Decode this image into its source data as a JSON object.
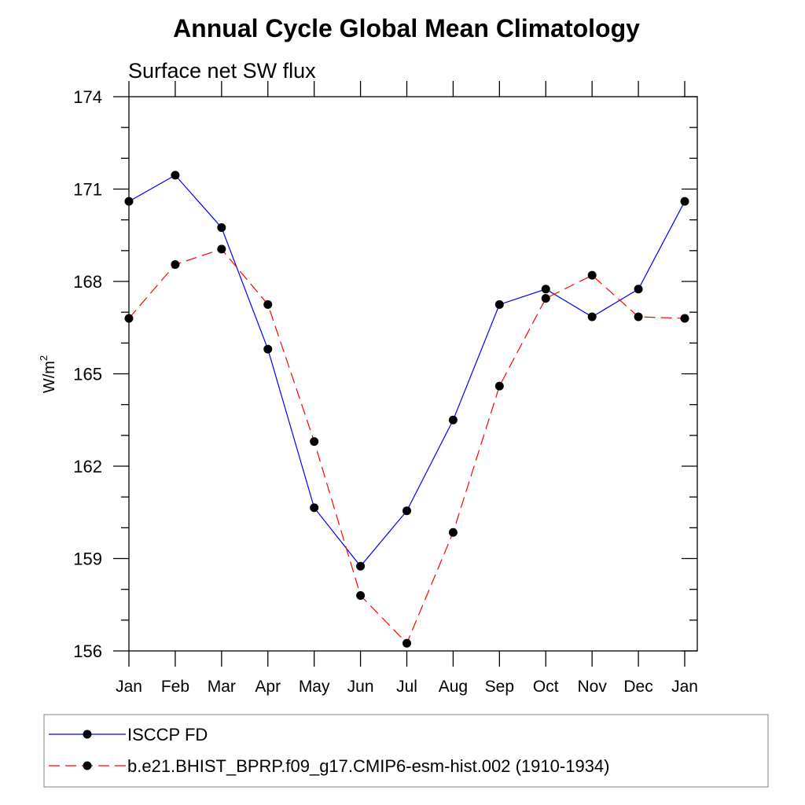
{
  "chart_data": {
    "type": "line",
    "title": "Annual Cycle Global Mean Climatology",
    "subtitle": "Surface net SW flux",
    "xlabel": "",
    "ylabel_base": "W/m",
    "ylabel_sup": "2",
    "categories": [
      "Jan",
      "Feb",
      "Mar",
      "Apr",
      "May",
      "Jun",
      "Jul",
      "Aug",
      "Sep",
      "Oct",
      "Nov",
      "Dec",
      "Jan"
    ],
    "ylim": [
      156,
      174
    ],
    "yticks": [
      156,
      159,
      162,
      165,
      168,
      171,
      174
    ],
    "grid": false,
    "legend_placement": "bottom",
    "series": [
      {
        "name": "ISCCP FD",
        "color": "#0000ff",
        "dash": "solid",
        "marker": "filled-circle",
        "values": [
          170.6,
          171.45,
          169.75,
          165.8,
          160.65,
          158.75,
          160.55,
          163.5,
          167.25,
          167.75,
          166.85,
          167.75,
          170.6
        ]
      },
      {
        "name": "b.e21.BHIST_BPRP.f09_g17.CMIP6-esm-hist.002 (1910-1934)",
        "color": "#ff0000",
        "dash": "dashed",
        "marker": "filled-circle",
        "values": [
          166.8,
          168.55,
          169.05,
          167.25,
          162.8,
          157.8,
          156.25,
          159.85,
          164.6,
          167.45,
          168.2,
          166.85,
          166.8
        ]
      }
    ]
  }
}
